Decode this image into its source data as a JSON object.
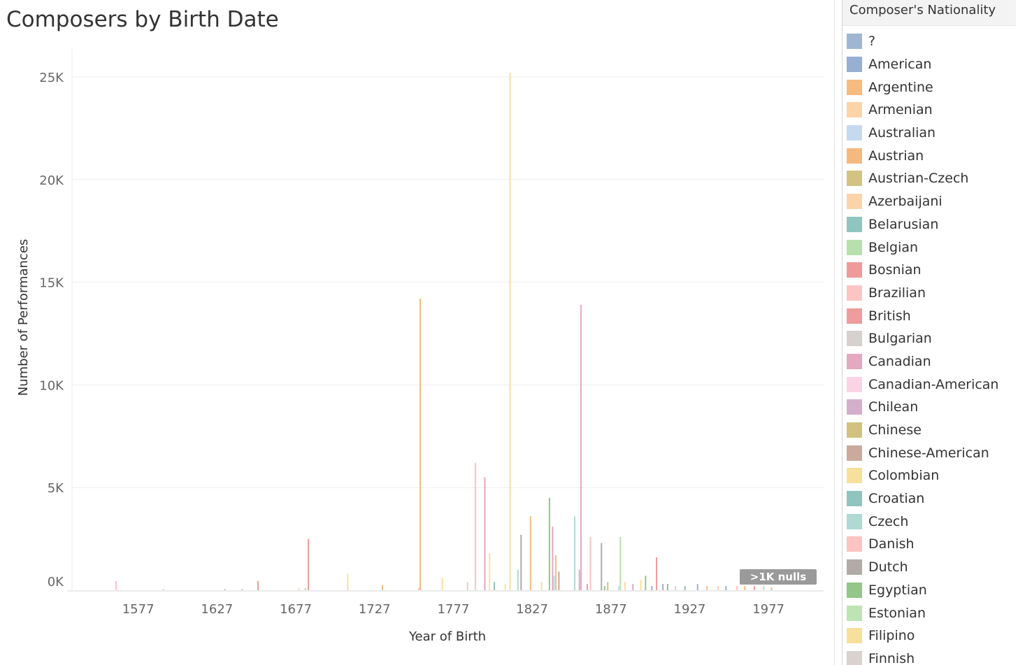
{
  "chart_data": {
    "type": "bar",
    "title": "Composers by Birth Date",
    "xlabel": "Year of Birth",
    "ylabel": "Number of Performances",
    "xlim": [
      1535,
      2012
    ],
    "ylim": [
      0,
      25000
    ],
    "x_ticks": [
      1577,
      1627,
      1677,
      1727,
      1777,
      1827,
      1877,
      1927,
      1977
    ],
    "y_ticks": [
      {
        "value": 0,
        "label": "0K"
      },
      {
        "value": 5000,
        "label": "5K"
      },
      {
        "value": 10000,
        "label": "10K"
      },
      {
        "value": 15000,
        "label": "15K"
      },
      {
        "value": 20000,
        "label": "20K"
      },
      {
        "value": 25000,
        "label": "25K"
      }
    ],
    "grid": true,
    "legend_title": "Composer's Nationality",
    "legend_position": "right",
    "null_badge": ">1K nulls",
    "legend": [
      {
        "name": "?",
        "color": "#9fb6d1"
      },
      {
        "name": "American",
        "color": "#97afd0"
      },
      {
        "name": "Argentine",
        "color": "#f6bb7e"
      },
      {
        "name": "Armenian",
        "color": "#fdd3a8"
      },
      {
        "name": "Australian",
        "color": "#c5daee"
      },
      {
        "name": "Austrian",
        "color": "#f5b97f"
      },
      {
        "name": "Austrian-Czech",
        "color": "#d3c383"
      },
      {
        "name": "Azerbaijani",
        "color": "#fdd4a9"
      },
      {
        "name": "Belarusian",
        "color": "#90c4bf"
      },
      {
        "name": "Belgian",
        "color": "#b7e0ad"
      },
      {
        "name": "Bosnian",
        "color": "#ee9a9a"
      },
      {
        "name": "Brazilian",
        "color": "#fdc4c3"
      },
      {
        "name": "British",
        "color": "#ee9c9c"
      },
      {
        "name": "Bulgarian",
        "color": "#d6d0ce"
      },
      {
        "name": "Canadian",
        "color": "#e4a8bf"
      },
      {
        "name": "Canadian-American",
        "color": "#fad4e3"
      },
      {
        "name": "Chilean",
        "color": "#d4afcc"
      },
      {
        "name": "Chinese",
        "color": "#d1c27f"
      },
      {
        "name": "Chinese-American",
        "color": "#c9aa9c"
      },
      {
        "name": "Colombian",
        "color": "#f6e09c"
      },
      {
        "name": "Croatian",
        "color": "#8fc4bf"
      },
      {
        "name": "Czech",
        "color": "#afd9d3"
      },
      {
        "name": "Danish",
        "color": "#fdc3c0"
      },
      {
        "name": "Dutch",
        "color": "#b2aaa6"
      },
      {
        "name": "Egyptian",
        "color": "#93c688"
      },
      {
        "name": "Estonian",
        "color": "#bde4b3"
      },
      {
        "name": "Filipino",
        "color": "#f7e09c"
      },
      {
        "name": "Finnish",
        "color": "#d9d2cf"
      }
    ],
    "bars": [
      {
        "year": 1563,
        "value": 450,
        "color": "#fdc4c3"
      },
      {
        "year": 1593,
        "value": 60,
        "color": "#c5daee"
      },
      {
        "year": 1632,
        "value": 50,
        "color": "#90c4bf"
      },
      {
        "year": 1643,
        "value": 50,
        "color": "#90c4bf"
      },
      {
        "year": 1653,
        "value": 450,
        "color": "#ee9a9a"
      },
      {
        "year": 1679,
        "value": 80,
        "color": "#fdd3a8"
      },
      {
        "year": 1683,
        "value": 100,
        "color": "#b7e0ad"
      },
      {
        "year": 1685,
        "value": 2500,
        "color": "#ee9c9c"
      },
      {
        "year": 1710,
        "value": 800,
        "color": "#f6e09c"
      },
      {
        "year": 1732,
        "value": 250,
        "color": "#f6bb7e"
      },
      {
        "year": 1755,
        "value": 100,
        "color": "#fdc3c0"
      },
      {
        "year": 1756,
        "value": 14200,
        "color": "#f5b97f"
      },
      {
        "year": 1770,
        "value": 600,
        "color": "#f7e09c"
      },
      {
        "year": 1786,
        "value": 400,
        "color": "#fdc4c3"
      },
      {
        "year": 1791,
        "value": 6200,
        "color": "#fdc4c3"
      },
      {
        "year": 1797,
        "value": 5500,
        "color": "#e4a8bf"
      },
      {
        "year": 1800,
        "value": 1800,
        "color": "#f6e09c"
      },
      {
        "year": 1803,
        "value": 400,
        "color": "#90c4bf"
      },
      {
        "year": 1810,
        "value": 300,
        "color": "#f6e09c"
      },
      {
        "year": 1813,
        "value": 25200,
        "color": "#f7e09c"
      },
      {
        "year": 1818,
        "value": 1000,
        "color": "#afd9d3"
      },
      {
        "year": 1820,
        "value": 2700,
        "color": "#b2aaa6"
      },
      {
        "year": 1826,
        "value": 3600,
        "color": "#f6bb7e"
      },
      {
        "year": 1833,
        "value": 400,
        "color": "#f7e09c"
      },
      {
        "year": 1838,
        "value": 4500,
        "color": "#93c688"
      },
      {
        "year": 1840,
        "value": 3100,
        "color": "#e4a8bf"
      },
      {
        "year": 1841,
        "value": 700,
        "color": "#c5daee"
      },
      {
        "year": 1842,
        "value": 1700,
        "color": "#f6bb7e"
      },
      {
        "year": 1844,
        "value": 900,
        "color": "#c9aa9c"
      },
      {
        "year": 1854,
        "value": 3600,
        "color": "#afd9d3"
      },
      {
        "year": 1857,
        "value": 1000,
        "color": "#d4afcc"
      },
      {
        "year": 1858,
        "value": 13900,
        "color": "#e4a8bf"
      },
      {
        "year": 1862,
        "value": 300,
        "color": "#ee9c9c"
      },
      {
        "year": 1864,
        "value": 2600,
        "color": "#fdc3c0"
      },
      {
        "year": 1871,
        "value": 2300,
        "color": "#b2aaa6"
      },
      {
        "year": 1873,
        "value": 200,
        "color": "#93c688"
      },
      {
        "year": 1875,
        "value": 400,
        "color": "#d1c27f"
      },
      {
        "year": 1882,
        "value": 200,
        "color": "#c5daee"
      },
      {
        "year": 1883,
        "value": 2600,
        "color": "#b7e0ad"
      },
      {
        "year": 1886,
        "value": 400,
        "color": "#fdd4a9"
      },
      {
        "year": 1891,
        "value": 300,
        "color": "#d4afcc"
      },
      {
        "year": 1896,
        "value": 500,
        "color": "#f7e09c"
      },
      {
        "year": 1899,
        "value": 700,
        "color": "#93c688"
      },
      {
        "year": 1903,
        "value": 200,
        "color": "#97afd0"
      },
      {
        "year": 1906,
        "value": 1600,
        "color": "#ee9a9a"
      },
      {
        "year": 1910,
        "value": 300,
        "color": "#97afd0"
      },
      {
        "year": 1913,
        "value": 300,
        "color": "#b2aaa6"
      },
      {
        "year": 1918,
        "value": 200,
        "color": "#d6d0ce"
      },
      {
        "year": 1924,
        "value": 200,
        "color": "#97afd0"
      },
      {
        "year": 1932,
        "value": 300,
        "color": "#97afd0"
      },
      {
        "year": 1938,
        "value": 200,
        "color": "#f6bb7e"
      },
      {
        "year": 1945,
        "value": 200,
        "color": "#fdd3a8"
      },
      {
        "year": 1950,
        "value": 200,
        "color": "#97afd0"
      },
      {
        "year": 1957,
        "value": 200,
        "color": "#fdc4c3"
      },
      {
        "year": 1962,
        "value": 200,
        "color": "#f6bb7e"
      },
      {
        "year": 1968,
        "value": 200,
        "color": "#ee9c9c"
      },
      {
        "year": 1974,
        "value": 200,
        "color": "#d6d0ce"
      },
      {
        "year": 1979,
        "value": 150,
        "color": "#f6bb7e"
      }
    ]
  }
}
